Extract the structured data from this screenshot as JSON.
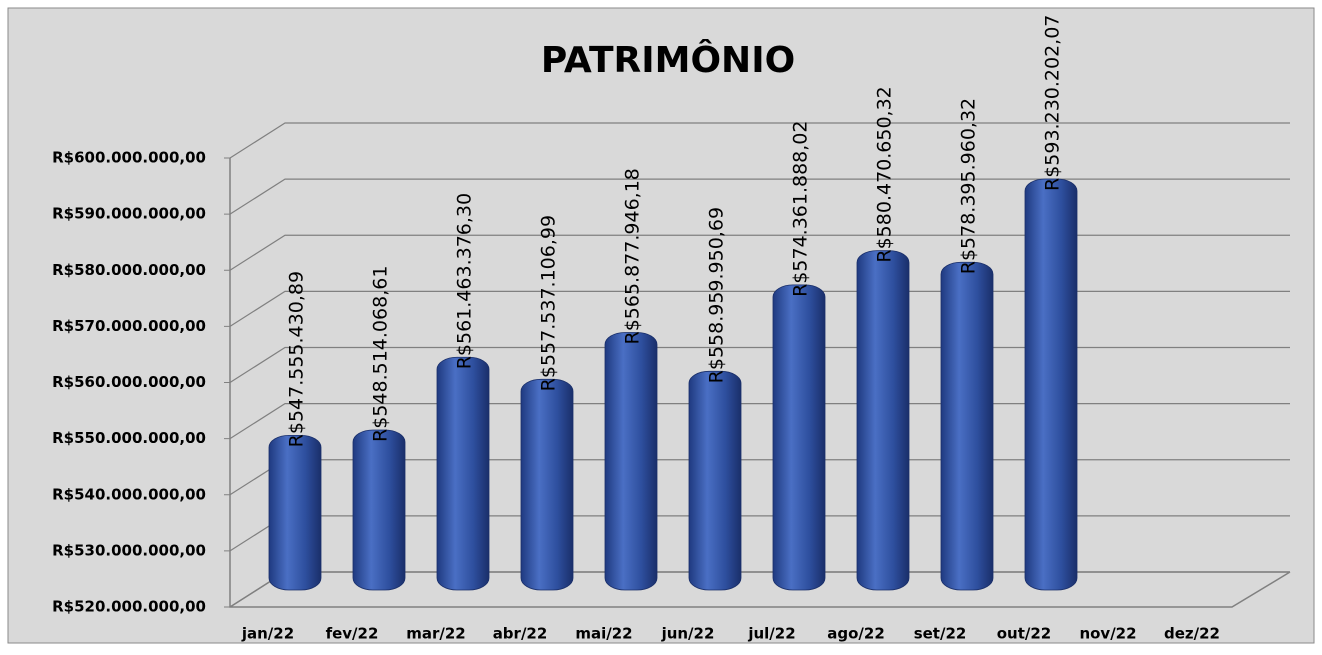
{
  "chart_data": {
    "type": "bar",
    "title": "PATRIMÔNIO",
    "categories": [
      "jan/22",
      "fev/22",
      "mar/22",
      "abr/22",
      "mai/22",
      "jun/22",
      "jul/22",
      "ago/22",
      "set/22",
      "out/22",
      "nov/22",
      "dez/22"
    ],
    "values": [
      547555430.89,
      548514068.61,
      561463376.3,
      557537106.99,
      565877946.18,
      558959950.69,
      574361888.02,
      580470650.32,
      578395960.32,
      593230202.07,
      null,
      null
    ],
    "value_labels": [
      "R$547.555.430,89",
      "R$548.514.068,61",
      "R$561.463.376,30",
      "R$557.537.106,99",
      "R$565.877.946,18",
      "R$558.959.950,69",
      "R$574.361.888,02",
      "R$580.470.650,32",
      "R$578.395.960,32",
      "R$593.230.202,07",
      null,
      null
    ],
    "color": "#2e4f9e",
    "ylim": [
      520000000,
      600000000
    ],
    "yticks": [
      {
        "value": 520000000,
        "label": "R$520.000.000,00"
      },
      {
        "value": 530000000,
        "label": "R$530.000.000,00"
      },
      {
        "value": 540000000,
        "label": "R$540.000.000,00"
      },
      {
        "value": 550000000,
        "label": "R$550.000.000,00"
      },
      {
        "value": 560000000,
        "label": "R$560.000.000,00"
      },
      {
        "value": 570000000,
        "label": "R$570.000.000,00"
      },
      {
        "value": 580000000,
        "label": "R$580.000.000,00"
      },
      {
        "value": 590000000,
        "label": "R$590.000.000,00"
      },
      {
        "value": 600000000,
        "label": "R$600.000.000,00"
      }
    ],
    "grid": true
  }
}
